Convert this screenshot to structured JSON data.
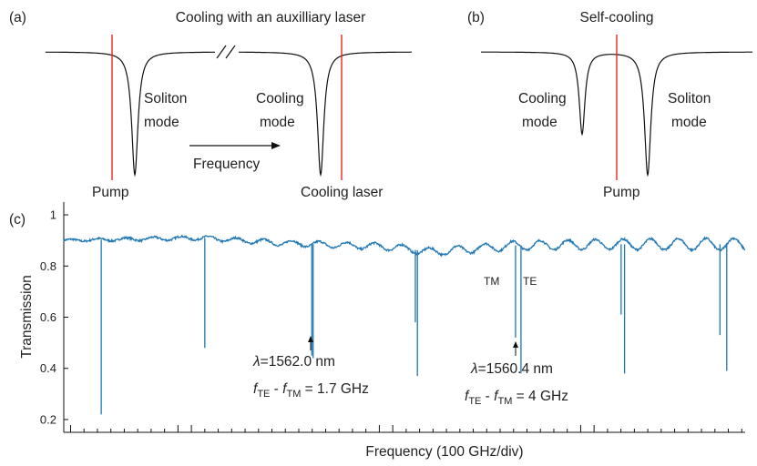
{
  "panel_a": {
    "tag": "(a)",
    "title": "Cooling with an auxilliary laser",
    "soliton_label": [
      "Soliton",
      "mode"
    ],
    "cooling_label": [
      "Cooling",
      "mode"
    ],
    "frequency_label": "Frequency",
    "pump_label": "Pump",
    "cooling_laser_label": "Cooling laser",
    "line_color": "#e8251f"
  },
  "panel_b": {
    "tag": "(b)",
    "title": "Self-cooling",
    "cooling_label": [
      "Cooling",
      "mode"
    ],
    "soliton_label": [
      "Soliton",
      "mode"
    ],
    "pump_label": "Pump"
  },
  "chart_data": {
    "tag": "(c)",
    "type": "line",
    "xlabel": "Frequency (100 GHz/div)",
    "ylabel": "Transmission",
    "ylim": [
      0.15,
      1.05
    ],
    "yticks": [
      0.2,
      0.4,
      0.6,
      0.8,
      1
    ],
    "ytick_labels": [
      "0.2",
      "0.4",
      "0.6",
      "0.8",
      "1"
    ],
    "xlim": [
      0,
      100
    ],
    "xticks_major": [
      0,
      17.7,
      47.2,
      76.7
    ],
    "baseline": [
      [
        0,
        0.9
      ],
      [
        20,
        0.91
      ],
      [
        32,
        0.89
      ],
      [
        48,
        0.875
      ],
      [
        54,
        0.855
      ],
      [
        66,
        0.88
      ],
      [
        80,
        0.885
      ],
      [
        100,
        0.885
      ]
    ],
    "dips": [
      {
        "x": 5.5,
        "depth": 0.22
      },
      {
        "x": 20.7,
        "depth": 0.48
      },
      {
        "x": 36.4,
        "depth": 0.45
      },
      {
        "x": 36.6,
        "depth": 0.44
      },
      {
        "x": 51.6,
        "depth": 0.58
      },
      {
        "x": 51.9,
        "depth": 0.37
      },
      {
        "x": 66.3,
        "depth": 0.52
      },
      {
        "x": 67.1,
        "depth": 0.38
      },
      {
        "x": 81.8,
        "depth": 0.61
      },
      {
        "x": 82.3,
        "depth": 0.38
      },
      {
        "x": 96.3,
        "depth": 0.53
      },
      {
        "x": 97.3,
        "depth": 0.39
      }
    ],
    "line_color": "#1f77b4",
    "annotations": [
      {
        "lambda": "λ",
        "text": "=1562.0 nm",
        "df_pre": "f",
        "df_sub1": "TE",
        "df_mid": " - ",
        "df_f2": "f",
        "df_sub2": "TM",
        "df_post": " = 1.7 GHz",
        "x": 36.5
      },
      {
        "lambda": "λ",
        "text": "=1560.4 nm",
        "df_pre": "f",
        "df_sub1": "TE",
        "df_mid": " - ",
        "df_f2": "f",
        "df_sub2": "TM",
        "df_post": " = 4 GHz",
        "x": 66.7
      }
    ],
    "tm_label": "TM",
    "te_label": "TE"
  }
}
